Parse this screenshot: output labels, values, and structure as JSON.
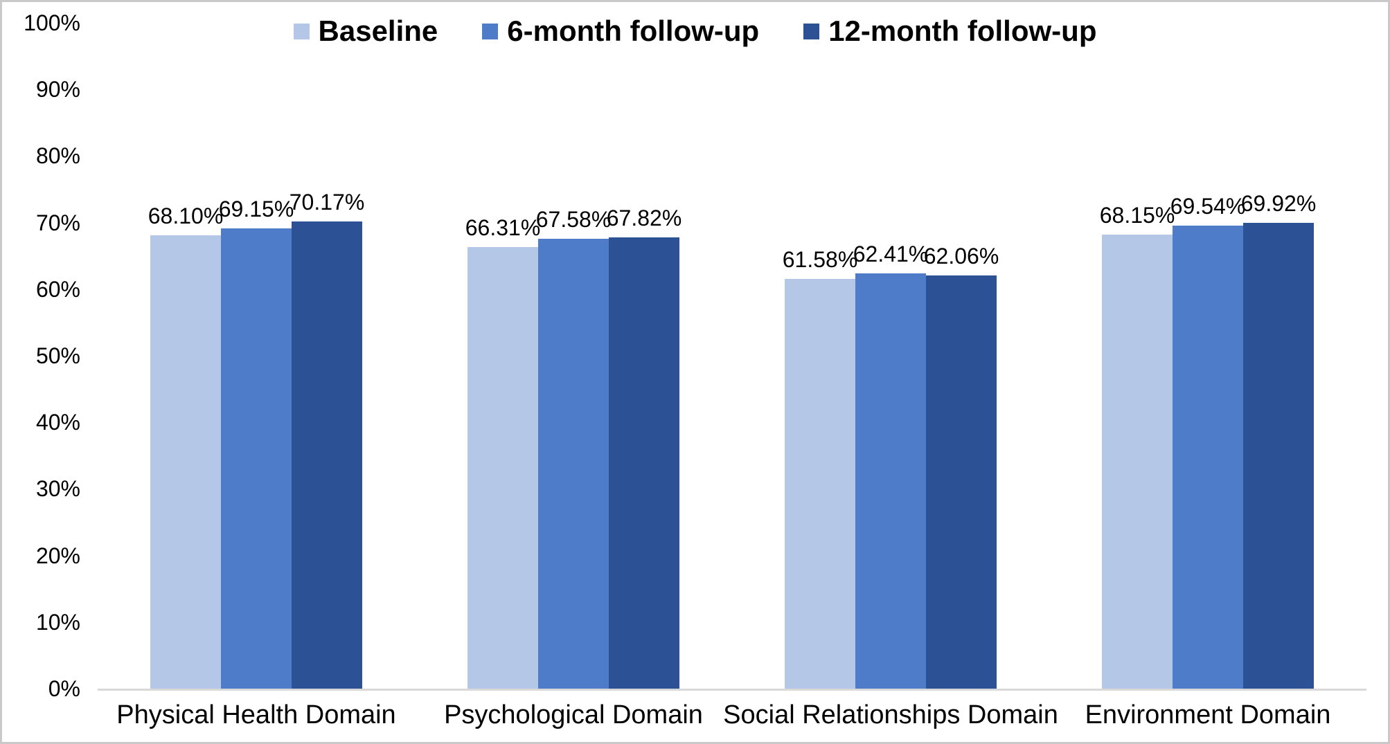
{
  "chart_data": {
    "type": "bar",
    "title": "",
    "categories": [
      "Physical Health Domain",
      "Psychological Domain",
      "Social Relationships Domain",
      "Environment Domain"
    ],
    "series": [
      {
        "name": "Baseline",
        "color": "#b4c7e7",
        "values": [
          68.1,
          66.31,
          61.58,
          68.15
        ],
        "value_labels": [
          "68.10%",
          "66.31%",
          "61.58%",
          "68.15%"
        ]
      },
      {
        "name": "6-month follow-up",
        "color": "#4e7cc8",
        "values": [
          69.15,
          67.58,
          62.41,
          69.54
        ],
        "value_labels": [
          "69.15%",
          "67.58%",
          "62.41%",
          "69.54%"
        ]
      },
      {
        "name": "12-month follow-up",
        "color": "#2c5194",
        "values": [
          70.17,
          67.82,
          62.06,
          69.92
        ],
        "value_labels": [
          "70.17%",
          "67.82%",
          "62.06%",
          "69.92%"
        ]
      }
    ],
    "y_axis": {
      "min": 0,
      "max": 100,
      "tick_step": 10,
      "tick_labels": [
        "0%",
        "10%",
        "20%",
        "30%",
        "40%",
        "50%",
        "60%",
        "70%",
        "80%",
        "90%",
        "100%"
      ]
    },
    "x_axis_line_color": "#d9d9d9",
    "legend_position": "top",
    "grid": "off",
    "data_label_format": "0.00%"
  }
}
